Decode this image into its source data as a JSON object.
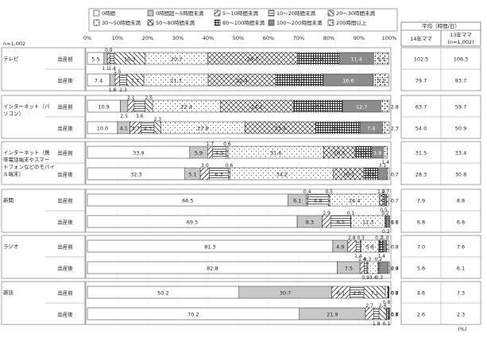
{
  "chart_data": {
    "type": "bar",
    "orientation": "horizontal",
    "stacked": "100%",
    "sample": "n=1,002",
    "unit": "(%)",
    "xlim": [
      0,
      100
    ],
    "xticks": [
      "0%",
      "10%",
      "20%",
      "30%",
      "40%",
      "50%",
      "60%",
      "70%",
      "80%",
      "90%",
      "100%"
    ],
    "series": [
      {
        "name": "0時間"
      },
      {
        "name": "0時間超～5時間未満"
      },
      {
        "name": "5～10時間未満"
      },
      {
        "name": "10～20時間未満"
      },
      {
        "name": "20～30時間未満"
      },
      {
        "name": "30～50時間未満"
      },
      {
        "name": "50～80時間未満"
      },
      {
        "name": "80～100時間未満"
      },
      {
        "name": "100～200時間未満"
      },
      {
        "name": "200時間以上"
      }
    ],
    "avg_header": {
      "title": "平均（時間/日）",
      "col1": "14年ママ",
      "col2_line1": "13年ママ",
      "col2_line2": "(n=1,002)"
    },
    "groups": [
      {
        "label": "テレビ",
        "rows": [
          {
            "label": "出産前",
            "values": [
              5.5,
              1.1,
              0.9,
              1.4,
              10.3,
              20.7,
              29.7,
              13.8,
              11.4,
              5.1
            ],
            "avg14": "102.5",
            "avg13": "106.3"
          },
          {
            "label": "出産後",
            "values": [
              7.4,
              1.8,
              1.5,
              2.3,
              5.7,
              21.3,
              22.4,
              15.7,
              16.6,
              5.1
            ],
            "avg14": "79.7",
            "avg13": "83.7"
          }
        ]
      },
      {
        "label": "インターネット（パソコン）",
        "rows": [
          {
            "label": "出産前",
            "values": [
              10.9,
              2.5,
              2.1,
              3.6,
              2.5,
              22.4,
              24.2,
              16.3,
              12.7,
              2.8
            ],
            "avg14": "63.7",
            "avg13": "59.7"
          },
          {
            "label": "出産後",
            "values": [
              10.0,
              4.1,
              3.7,
              4.3,
              2.3,
              27.8,
              23.4,
              14.7,
              7.4,
              2.3
            ],
            "avg14": "54.0",
            "avg13": "50.9"
          }
        ]
      },
      {
        "label": "インターネット（携帯電話端末やスマートフォンなどのモバイル端末）",
        "rows": [
          {
            "label": "出産前",
            "values": [
              33.9,
              5.9,
              1.7,
              4.5,
              0.6,
              31.6,
              10.5,
              5.5,
              3.8,
              1.4
            ],
            "avg14": "31.5",
            "avg13": "33.4"
          },
          {
            "label": "出産後",
            "values": [
              32.3,
              5.1,
              3.0,
              6.3,
              0.6,
              34.2,
              10.1,
              4.6,
              3.1,
              0.7
            ],
            "avg14": "28.3",
            "avg13": "30.8"
          }
        ]
      },
      {
        "label": "新聞",
        "rows": [
          {
            "label": "出産前",
            "values": [
              66.5,
              6.1,
              0.4,
              6.8,
              0.5,
              16.4,
              1.2,
              0.5,
              0.7,
              0.7
            ],
            "avg14": "7.9",
            "avg13": "8.8"
          },
          {
            "label": "出産後",
            "values": [
              69.5,
              8.3,
              2.9,
              6.5,
              0.1,
              11.3,
              0.2,
              0.2,
              1.0,
              0.1
            ],
            "avg14": "6.8",
            "avg13": "6.8"
          }
        ]
      },
      {
        "label": "ラジオ",
        "rows": [
          {
            "label": "出産前",
            "values": [
              81.3,
              4.9,
              2.8,
              1.4,
              0.3,
              5.8,
              0.2,
              1.4,
              1.0,
              0.8
            ],
            "avg14": "7.0",
            "avg13": "7.6"
          },
          {
            "label": "出産後",
            "values": [
              82.8,
              7.5,
              1.4,
              0.9,
              0.3,
              3.4,
              0.2,
              0.3,
              2.9,
              0.4
            ],
            "avg14": "5.6",
            "avg13": "6.1"
          }
        ]
      },
      {
        "label": "雑誌",
        "rows": [
          {
            "label": "出産前",
            "values": [
              50.2,
              30.7,
              6.1,
              4.6,
              7.1,
              0.8,
              0.2,
              0.1,
              0.1,
              0.0
            ],
            "avg14": "4.6",
            "avg13": "7.3"
          },
          {
            "label": "出産後",
            "values": [
              70.2,
              21.9,
              2.7,
              1.8,
              2.4,
              0.1,
              0.6,
              0.2,
              0.1,
              0.1
            ],
            "avg14": "2.6",
            "avg13": "2.3"
          }
        ]
      }
    ]
  }
}
